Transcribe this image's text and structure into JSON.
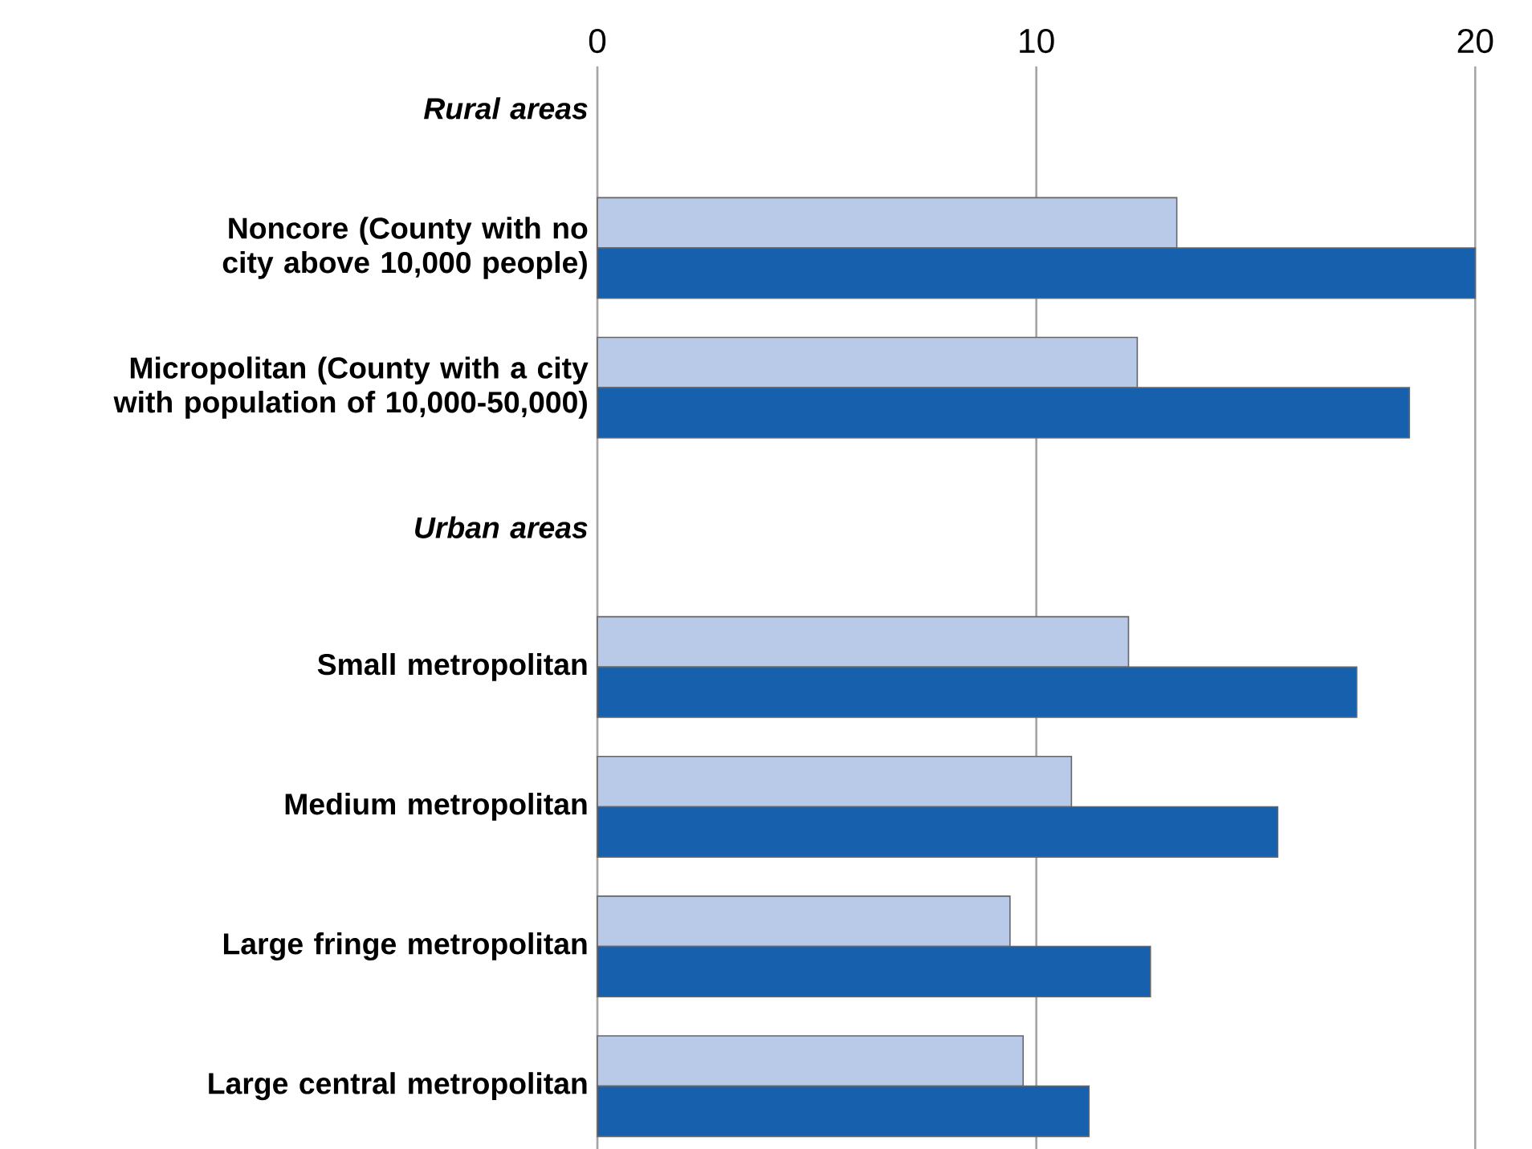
{
  "chart_data": {
    "type": "bar",
    "orientation": "horizontal",
    "categories": [
      "Rural areas",
      "Noncore (County with no city above 10,000 people)",
      "Micropolitan (County with a city with population of 10,000-50,000)",
      "Urban areas",
      "Small metropolitan",
      "Medium metropolitan",
      "Large fringe metropolitan",
      "Large central metropolitan"
    ],
    "series": [
      {
        "color": "#b9cae8",
        "values": [
          null,
          13.2,
          12.3,
          null,
          12.1,
          10.8,
          9.4,
          9.7
        ]
      },
      {
        "color": "#1760ad",
        "values": [
          null,
          20,
          18.5,
          null,
          17.3,
          15.5,
          12.6,
          11.2
        ]
      }
    ],
    "xlim": [
      0,
      20
    ],
    "xticks": [
      0,
      10,
      20
    ],
    "grid": "x"
  }
}
